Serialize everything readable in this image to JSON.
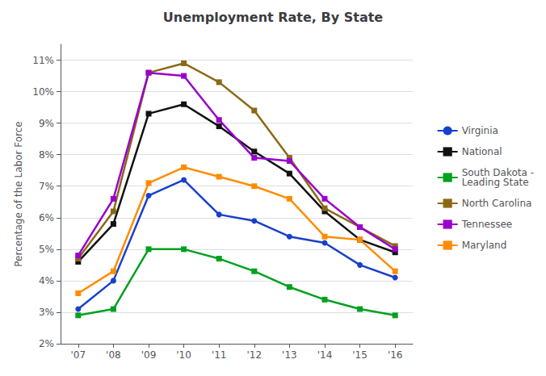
{
  "chart_data": {
    "type": "line",
    "title": "Unemployment Rate, By State",
    "ylabel": "Percentage of the Labor Force",
    "categories": [
      "'07",
      "'08",
      "'09",
      "'10",
      "'11",
      "'12",
      "'13",
      "'14",
      "'15",
      "'16"
    ],
    "series": [
      {
        "name": "Virginia",
        "color": "#1a3fcc",
        "marker": "circle",
        "values": [
          3.1,
          4.0,
          6.7,
          7.2,
          6.1,
          5.9,
          5.4,
          5.2,
          4.5,
          4.1
        ]
      },
      {
        "name": "National",
        "color": "#111111",
        "marker": "square",
        "values": [
          4.6,
          5.8,
          9.3,
          9.6,
          8.9,
          8.1,
          7.4,
          6.2,
          5.3,
          4.9
        ]
      },
      {
        "name": "South Dakota -\nLeading State",
        "color": "#00A020",
        "marker": "square",
        "values": [
          2.9,
          3.1,
          5.0,
          5.0,
          4.7,
          4.3,
          3.8,
          3.4,
          3.1,
          2.9
        ]
      },
      {
        "name": "North Carolina",
        "color": "#8B6914",
        "marker": "square",
        "values": [
          4.7,
          6.2,
          10.6,
          10.9,
          10.3,
          9.4,
          7.9,
          6.3,
          5.7,
          5.1
        ]
      },
      {
        "name": "Tennessee",
        "color": "#9900CC",
        "marker": "square",
        "values": [
          4.8,
          6.6,
          10.6,
          10.5,
          9.1,
          7.9,
          7.8,
          6.6,
          5.7,
          5.0
        ]
      },
      {
        "name": "Maryland",
        "color": "#FF8C00",
        "marker": "square",
        "values": [
          3.6,
          4.3,
          7.1,
          7.6,
          7.3,
          7.0,
          6.6,
          5.4,
          5.3,
          4.3
        ]
      }
    ],
    "ylim": [
      2.0,
      11.5
    ],
    "yticks": [
      {
        "value": 2,
        "label": "2%"
      },
      {
        "value": 3,
        "label": "3%"
      },
      {
        "value": 4,
        "label": "4%"
      },
      {
        "value": 5,
        "label": "5%"
      },
      {
        "value": 6,
        "label": "6%"
      },
      {
        "value": 7,
        "label": "7%"
      },
      {
        "value": 8,
        "label": "8%"
      },
      {
        "value": 9,
        "label": "9%"
      },
      {
        "value": 10,
        "label": "10%"
      },
      {
        "value": 11,
        "label": "11%"
      }
    ],
    "grid": true,
    "legend": "right"
  }
}
